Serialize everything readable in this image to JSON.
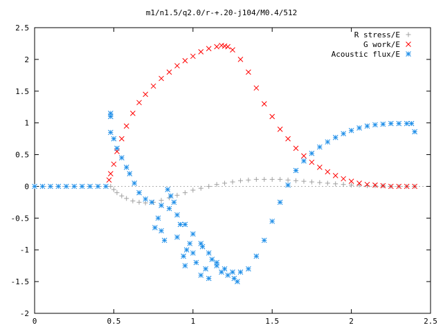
{
  "chart_data": {
    "type": "scatter",
    "title": "m1/n1.5/q2.0/r-+.20-j104/M0.4/512",
    "xlabel": "",
    "ylabel": "",
    "xlim": [
      0,
      2.5
    ],
    "ylim": [
      -2,
      2.5
    ],
    "xticks": [
      0,
      0.5,
      1,
      1.5,
      2,
      2.5
    ],
    "xtick_labels": [
      "0",
      "0.5",
      "1",
      "1.5",
      "2",
      "2.5"
    ],
    "yticks": [
      -2,
      -1.5,
      -1,
      -0.5,
      0,
      0.5,
      1,
      1.5,
      2,
      2.5
    ],
    "ytick_labels": [
      "-2",
      "-1.5",
      "-1",
      "-0.5",
      "0",
      "0.5",
      "1",
      "1.5",
      "2",
      "2.5"
    ],
    "grid": false,
    "legend_position": "top-right",
    "series": [
      {
        "name": "R stress/E",
        "marker": "+",
        "color": "#a0a0a0",
        "x": [
          0.48,
          0.5,
          0.52,
          0.55,
          0.58,
          0.62,
          0.66,
          0.7,
          0.75,
          0.8,
          0.85,
          0.9,
          0.95,
          1.0,
          1.05,
          1.1,
          1.15,
          1.2,
          1.25,
          1.3,
          1.35,
          1.4,
          1.45,
          1.5,
          1.55,
          1.6,
          1.65,
          1.7,
          1.75,
          1.8,
          1.85,
          1.9,
          1.95,
          2.0,
          2.05,
          2.1,
          2.15,
          2.2,
          2.25,
          2.3,
          2.35,
          2.4
        ],
        "y": [
          0.0,
          -0.05,
          -0.1,
          -0.15,
          -0.19,
          -0.23,
          -0.25,
          -0.26,
          -0.25,
          -0.22,
          -0.18,
          -0.14,
          -0.1,
          -0.06,
          -0.03,
          0.0,
          0.03,
          0.05,
          0.07,
          0.09,
          0.1,
          0.11,
          0.11,
          0.11,
          0.11,
          0.1,
          0.09,
          0.08,
          0.07,
          0.06,
          0.05,
          0.04,
          0.03,
          0.02,
          0.02,
          0.01,
          0.01,
          0.01,
          0.0,
          0.0,
          0.0,
          0.0
        ]
      },
      {
        "name": "G work/E",
        "marker": "x",
        "color": "#ff0000",
        "x": [
          0.47,
          0.48,
          0.5,
          0.52,
          0.55,
          0.58,
          0.62,
          0.66,
          0.7,
          0.75,
          0.8,
          0.85,
          0.9,
          0.95,
          1.0,
          1.05,
          1.1,
          1.15,
          1.18,
          1.2,
          1.22,
          1.25,
          1.3,
          1.35,
          1.4,
          1.45,
          1.5,
          1.55,
          1.6,
          1.65,
          1.7,
          1.75,
          1.8,
          1.85,
          1.9,
          1.95,
          2.0,
          2.05,
          2.1,
          2.15,
          2.2,
          2.25,
          2.3,
          2.35,
          2.4
        ],
        "y": [
          0.1,
          0.2,
          0.35,
          0.55,
          0.75,
          0.95,
          1.15,
          1.32,
          1.45,
          1.58,
          1.7,
          1.8,
          1.9,
          1.98,
          2.05,
          2.12,
          2.17,
          2.2,
          2.22,
          2.21,
          2.2,
          2.15,
          2.0,
          1.8,
          1.55,
          1.3,
          1.1,
          0.9,
          0.75,
          0.6,
          0.48,
          0.38,
          0.3,
          0.23,
          0.17,
          0.12,
          0.08,
          0.05,
          0.03,
          0.02,
          0.01,
          0.0,
          0.0,
          0.0,
          0.0
        ]
      },
      {
        "name": "Acoustic flux/E",
        "marker": "*",
        "color": "#1e8ee8",
        "x": [
          0.0,
          0.05,
          0.1,
          0.15,
          0.2,
          0.25,
          0.3,
          0.35,
          0.4,
          0.45,
          0.48,
          0.48,
          0.48,
          0.5,
          0.52,
          0.55,
          0.58,
          0.6,
          0.63,
          0.66,
          0.7,
          0.74,
          0.8,
          0.85,
          0.9,
          0.95,
          1.0,
          1.05,
          1.1,
          1.15,
          1.2,
          1.25,
          1.3,
          1.35,
          1.4,
          1.45,
          1.5,
          1.55,
          1.6,
          1.65,
          1.7,
          1.75,
          1.8,
          1.85,
          1.9,
          1.95,
          2.0,
          2.05,
          2.1,
          2.15,
          2.2,
          2.25,
          2.3,
          2.35,
          2.38,
          2.4,
          0.84,
          0.86,
          0.88,
          0.78,
          0.76,
          0.8,
          0.82,
          0.92,
          0.9,
          0.96,
          1.0,
          1.02,
          1.06,
          1.08,
          1.1,
          1.05,
          1.12,
          1.15,
          1.18,
          0.98,
          0.94,
          1.22,
          1.26,
          1.28,
          0.95
        ],
        "y": [
          0.0,
          0.0,
          0.0,
          0.0,
          0.0,
          0.0,
          0.0,
          0.0,
          0.0,
          0.0,
          1.1,
          1.15,
          0.85,
          0.75,
          0.6,
          0.45,
          0.3,
          0.2,
          0.05,
          -0.1,
          -0.2,
          -0.25,
          -0.3,
          -0.35,
          -0.45,
          -0.6,
          -0.75,
          -0.9,
          -1.05,
          -1.2,
          -1.3,
          -1.35,
          -1.35,
          -1.3,
          -1.1,
          -0.85,
          -0.55,
          -0.25,
          0.02,
          0.25,
          0.4,
          0.52,
          0.62,
          0.7,
          0.77,
          0.83,
          0.88,
          0.92,
          0.95,
          0.97,
          0.98,
          0.99,
          0.99,
          0.99,
          0.99,
          0.86,
          -0.05,
          -0.15,
          -0.25,
          -0.5,
          -0.65,
          -0.7,
          -0.85,
          -0.6,
          -0.8,
          -1.0,
          -1.05,
          -1.2,
          -0.95,
          -1.3,
          -1.45,
          -1.4,
          -1.15,
          -1.25,
          -1.35,
          -0.9,
          -1.1,
          -1.4,
          -1.45,
          -1.5,
          -1.25
        ]
      }
    ]
  }
}
